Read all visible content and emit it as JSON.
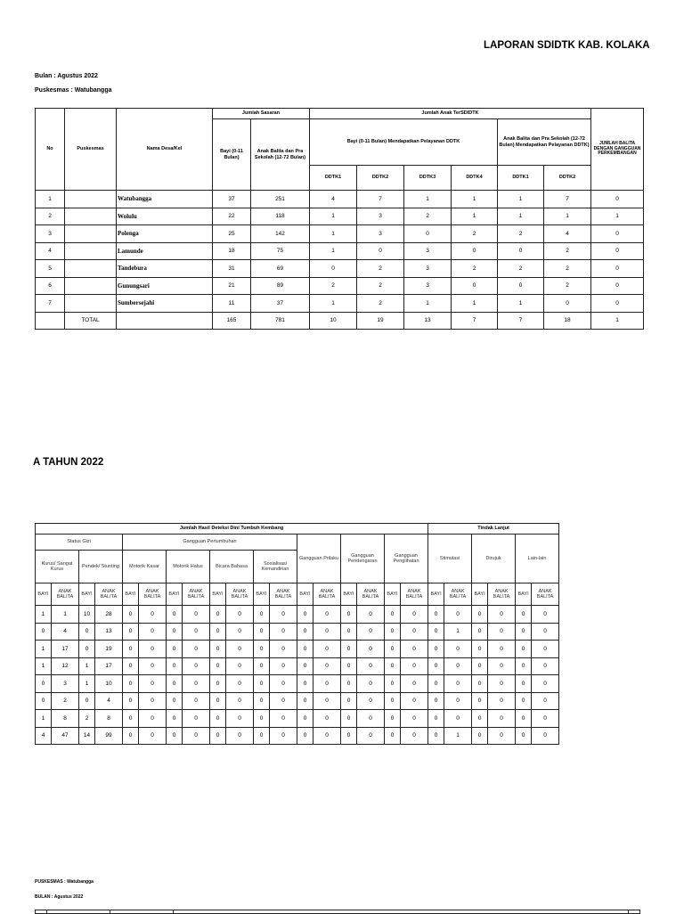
{
  "report_title": "LAPORAN SDIDTK KAB. KOLAKA",
  "bulan": "Bulan : Agustus 2022",
  "puskesmas": "Puskesmas : Watubangga",
  "section_title": "A TAHUN 2022",
  "table1": {
    "headers": {
      "no": "No",
      "puskesmas": "Puskesmas",
      "desa": "Nama Desa/Kel",
      "sasaran": "Jumlah Sasaran",
      "bayi": "Bayi (0-11 Bulan)",
      "anak": "Anak Balita dan Pra Sekolah (12-72 Bulan)",
      "tersdidtk": "Jumlah Anak TerSDIDTK",
      "bayi_ddtk": "Bayi (0-11 Bulan) Mendapatkan Pelayanan DDTK",
      "anak_ddtk": "Anak Balita dan Pra Sekolah (12-72 Bulan) Mendapatkan Pelayanan DDTK)",
      "gangguan": "JUMLAH BALITA DENGAN GANGGUAN PERKEMBANGAN",
      "ddtk": [
        "DDTK1",
        "DDTK2",
        "DDTK3",
        "DDTK4",
        "DDTK1",
        "DDTK2"
      ]
    },
    "rows": [
      {
        "no": "1",
        "desa": "Watubangga",
        "values": [
          "37",
          "251",
          "4",
          "7",
          "1",
          "1",
          "1",
          "7",
          "0"
        ]
      },
      {
        "no": "2",
        "desa": "Wolulu",
        "values": [
          "22",
          "118",
          "1",
          "3",
          "2",
          "1",
          "1",
          "1",
          "1"
        ]
      },
      {
        "no": "3",
        "desa": "Polenga",
        "values": [
          "25",
          "142",
          "1",
          "3",
          "0",
          "2",
          "2",
          "4",
          "0"
        ]
      },
      {
        "no": "4",
        "desa": "Lamunde",
        "values": [
          "18",
          "75",
          "1",
          "0",
          "3",
          "0",
          "0",
          "2",
          "0"
        ]
      },
      {
        "no": "5",
        "desa": "Tandebura",
        "values": [
          "31",
          "69",
          "0",
          "2",
          "3",
          "2",
          "2",
          "2",
          "0"
        ]
      },
      {
        "no": "6",
        "desa": "Gunungsari",
        "values": [
          "21",
          "89",
          "2",
          "2",
          "3",
          "0",
          "0",
          "2",
          "0"
        ]
      },
      {
        "no": "7",
        "desa": "Sumbersejahi",
        "values": [
          "11",
          "37",
          "1",
          "2",
          "1",
          "1",
          "1",
          "0",
          "0"
        ]
      }
    ],
    "total": {
      "label": "TOTAL",
      "values": [
        "165",
        "781",
        "10",
        "19",
        "13",
        "7",
        "7",
        "18",
        "1"
      ]
    }
  },
  "table2": {
    "deteksi": "Jumlah Hasil Deteksi Dini Tumbuh Kembang",
    "tindak": "Tindak Lanjut",
    "status_gizi": "Status Gizi",
    "gangguan_pertumbuhan": "Gangguan Pertumbuhan",
    "gangguan_perilaku": "Gangguan Prilaku",
    "gangguan_pendengaran": "Gangguan Pendengaran",
    "gangguan_penglihatan": "Gangguan Penglihatan",
    "stimulasi": "Stimulasi",
    "dirujuk": "Dirujuk",
    "lain": "Lain-lain",
    "sub": [
      "Kurus/ Sangat Kurus",
      "Pendek/ Stunting",
      "Motorik Kasar",
      "Motorik Halus",
      "Bicara Bahasa",
      "Sosialisasi Kemandirian"
    ],
    "bayi": "BAYI",
    "anak": "ANAK BALITA",
    "rows": [
      [
        "1",
        "1",
        "10",
        "28",
        "0",
        "0",
        "0",
        "0",
        "0",
        "0",
        "0",
        "0",
        "0",
        "0",
        "0",
        "0",
        "0",
        "0",
        "0",
        "0",
        "0",
        "0",
        "0",
        "0"
      ],
      [
        "0",
        "4",
        "0",
        "13",
        "0",
        "0",
        "0",
        "0",
        "0",
        "0",
        "0",
        "0",
        "0",
        "0",
        "0",
        "0",
        "0",
        "0",
        "0",
        "1",
        "0",
        "0",
        "0",
        "0"
      ],
      [
        "1",
        "17",
        "0",
        "19",
        "0",
        "0",
        "0",
        "0",
        "0",
        "0",
        "0",
        "0",
        "0",
        "0",
        "0",
        "0",
        "0",
        "0",
        "0",
        "0",
        "0",
        "0",
        "0",
        "0"
      ],
      [
        "1",
        "12",
        "1",
        "17",
        "0",
        "0",
        "0",
        "0",
        "0",
        "0",
        "0",
        "0",
        "0",
        "0",
        "0",
        "0",
        "0",
        "0",
        "0",
        "0",
        "0",
        "0",
        "0",
        "0"
      ],
      [
        "0",
        "3",
        "1",
        "10",
        "0",
        "0",
        "0",
        "0",
        "0",
        "0",
        "0",
        "0",
        "0",
        "0",
        "0",
        "0",
        "0",
        "0",
        "0",
        "0",
        "0",
        "0",
        "0",
        "0"
      ],
      [
        "0",
        "2",
        "0",
        "4",
        "0",
        "0",
        "0",
        "0",
        "0",
        "0",
        "0",
        "0",
        "0",
        "0",
        "0",
        "0",
        "0",
        "0",
        "0",
        "0",
        "0",
        "0",
        "0",
        "0"
      ],
      [
        "1",
        "8",
        "2",
        "8",
        "0",
        "0",
        "0",
        "0",
        "0",
        "0",
        "0",
        "0",
        "0",
        "0",
        "0",
        "0",
        "0",
        "0",
        "0",
        "0",
        "0",
        "0",
        "0",
        "0"
      ],
      [
        "4",
        "47",
        "14",
        "99",
        "0",
        "0",
        "0",
        "0",
        "0",
        "0",
        "0",
        "0",
        "0",
        "0",
        "0",
        "0",
        "0",
        "0",
        "0",
        "1",
        "0",
        "0",
        "0",
        "0"
      ]
    ]
  },
  "footer": {
    "puskesmas": "PUSKESMAS : Watubangga",
    "bulan": "BULAN : Agustus 2022"
  }
}
